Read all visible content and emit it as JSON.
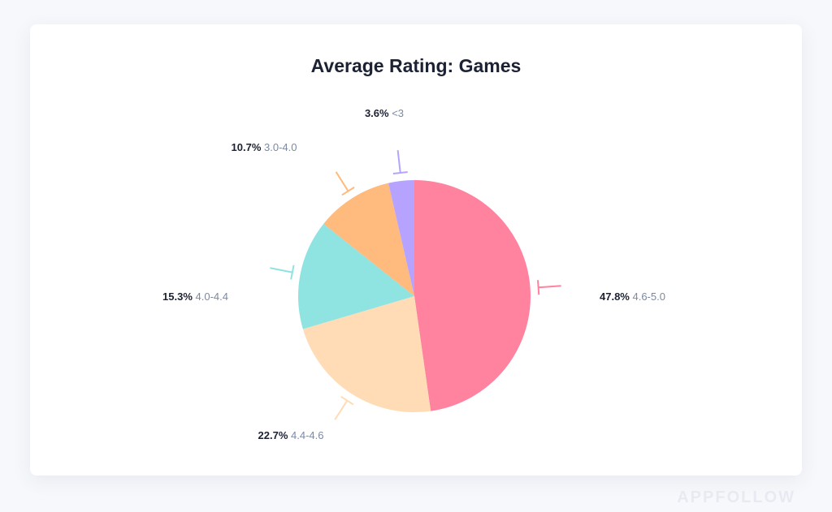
{
  "chart_data": {
    "type": "pie",
    "title": "Average Rating: Games",
    "slices": [
      {
        "label": "4.6-5.0",
        "value": 47.8,
        "pct_text": "47.8%",
        "color": "#ff829f"
      },
      {
        "label": "4.4-4.6",
        "value": 22.7,
        "pct_text": "22.7%",
        "color": "#ffdcb5"
      },
      {
        "label": "4.0-4.4",
        "value": 15.3,
        "pct_text": "15.3%",
        "color": "#8fe3e1"
      },
      {
        "label": "3.0-4.0",
        "value": 10.7,
        "pct_text": "10.7%",
        "color": "#ffba7d"
      },
      {
        "label": "<3",
        "value": 3.6,
        "pct_text": "3.6%",
        "color": "#b6a3ff"
      }
    ]
  },
  "watermark": "APPFOLLOW"
}
